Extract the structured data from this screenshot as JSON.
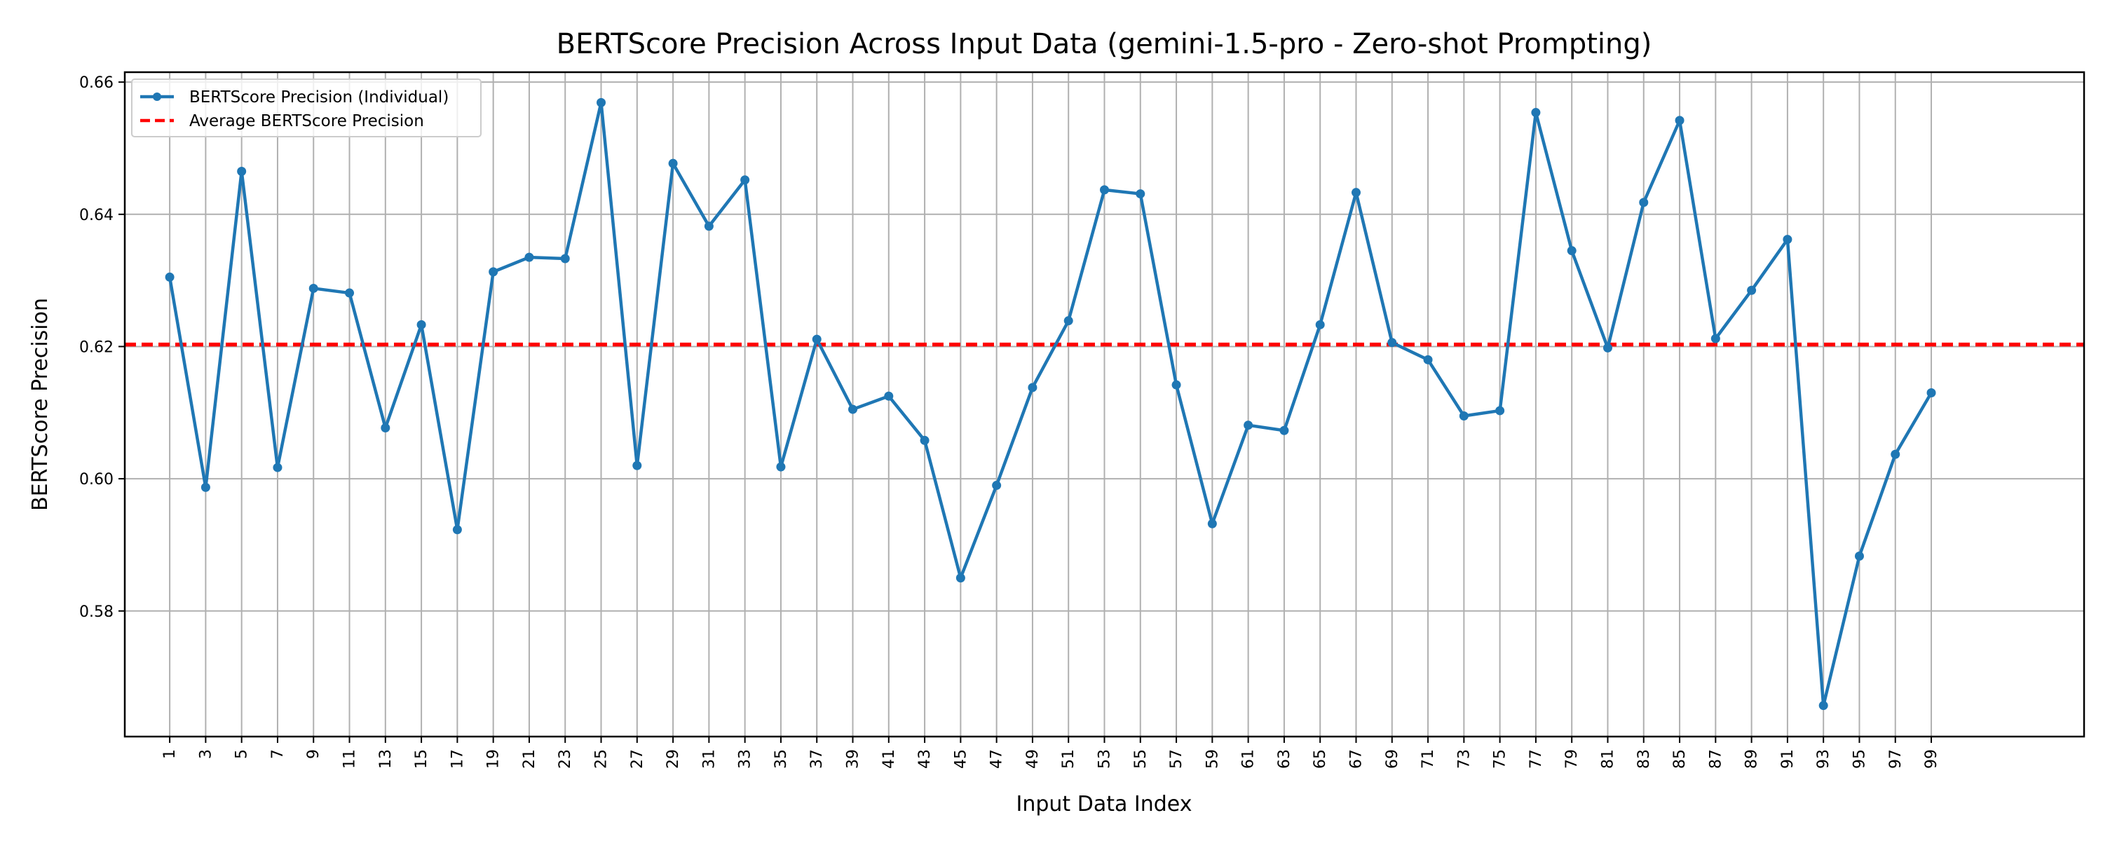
{
  "chart_data": {
    "type": "line",
    "title": "BERTScore Precision Across Input Data (gemini-1.5-pro - Zero-shot Prompting)",
    "xlabel": "Input Data Index",
    "ylabel": "BERTScore Precision",
    "xlim": [
      -1.5,
      107.5
    ],
    "ylim": [
      0.561,
      0.6615
    ],
    "x_ticks": [
      1,
      3,
      5,
      7,
      9,
      11,
      13,
      15,
      17,
      19,
      21,
      23,
      25,
      27,
      29,
      31,
      33,
      35,
      37,
      39,
      41,
      43,
      45,
      47,
      49,
      51,
      53,
      55,
      57,
      59,
      61,
      63,
      65,
      67,
      69,
      71,
      73,
      75,
      77,
      79,
      81,
      83,
      85,
      87,
      89,
      91,
      93,
      95,
      97,
      99
    ],
    "x_tick_labels": [
      "1",
      "3",
      "5",
      "7",
      "9",
      "11",
      "13",
      "15",
      "17",
      "19",
      "21",
      "23",
      "25",
      "27",
      "29",
      "31",
      "33",
      "35",
      "37",
      "39",
      "41",
      "43",
      "45",
      "47",
      "49",
      "51",
      "53",
      "55",
      "57",
      "59",
      "61",
      "63",
      "65",
      "67",
      "69",
      "71",
      "73",
      "75",
      "77",
      "79",
      "81",
      "83",
      "85",
      "87",
      "89",
      "91",
      "93",
      "95",
      "97",
      "99"
    ],
    "y_ticks": [
      0.58,
      0.6,
      0.62,
      0.64,
      0.66
    ],
    "y_tick_labels": [
      "0.58",
      "0.60",
      "0.62",
      "0.64",
      "0.66"
    ],
    "grid": true,
    "legend_position": "top-left",
    "series": [
      {
        "name": "BERTScore Precision (Individual)",
        "color": "#1f77b4",
        "marker": "circle",
        "x": [
          1,
          3,
          5,
          7,
          9,
          11,
          13,
          15,
          17,
          19,
          21,
          23,
          25,
          27,
          29,
          31,
          33,
          35,
          37,
          39,
          41,
          43,
          45,
          47,
          49,
          51,
          53,
          55,
          57,
          59,
          61,
          63,
          65,
          67,
          69,
          71,
          73,
          75,
          77,
          79,
          81,
          83,
          85,
          87,
          89,
          91,
          93,
          95,
          97,
          99
        ],
        "values": [
          0.6305,
          0.5987,
          0.6465,
          0.6017,
          0.6288,
          0.6281,
          0.6077,
          0.6233,
          0.5923,
          0.6313,
          0.6335,
          0.6333,
          0.6569,
          0.602,
          0.6477,
          0.6382,
          0.6452,
          0.6018,
          0.6211,
          0.6105,
          0.6125,
          0.6058,
          0.585,
          0.599,
          0.6138,
          0.6239,
          0.6437,
          0.6431,
          0.6142,
          0.5932,
          0.6081,
          0.6073,
          0.6233,
          0.6433,
          0.6206,
          0.618,
          0.6095,
          0.6103,
          0.6554,
          0.6345,
          0.6198,
          0.6418,
          0.6542,
          0.6212,
          0.6285,
          0.6362,
          0.5657,
          0.5883,
          0.6037,
          0.613
        ]
      },
      {
        "name": "Average BERTScore Precision",
        "color": "#ff0000",
        "style": "dashed",
        "value": 0.6203
      }
    ]
  }
}
